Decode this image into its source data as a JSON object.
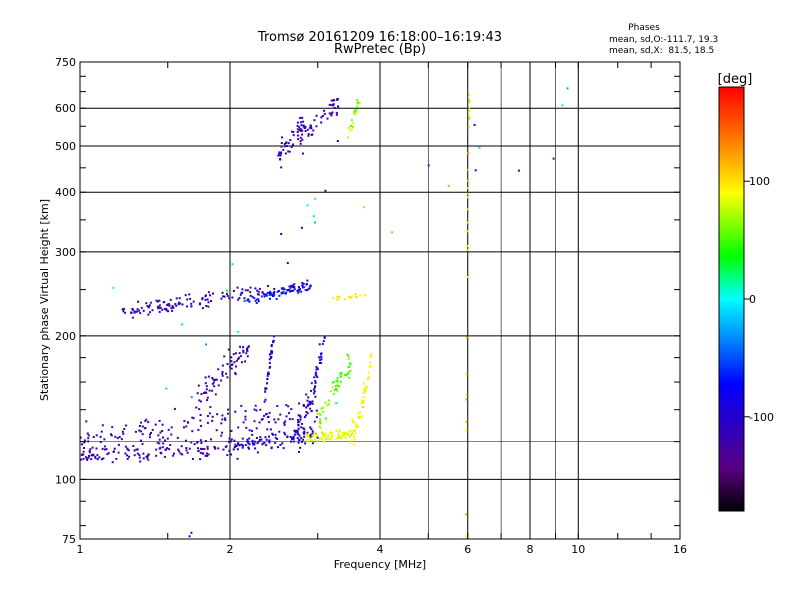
{
  "chart_data": {
    "type": "scatter",
    "title": "Tromsø 20161209 16:18:00–16:19:43",
    "subtitle": "RwPretec (Bp)",
    "xlabel": "Frequency [MHz]",
    "ylabel": "Stationary phase Virtual Height [km]",
    "x_scale": "log",
    "y_scale": "log",
    "xlim": [
      1,
      16
    ],
    "ylim": [
      75,
      750
    ],
    "x_ticks": [
      1,
      2,
      4,
      6,
      8,
      10,
      16
    ],
    "x_gridlines": [
      2,
      4,
      6,
      8,
      10
    ],
    "x_minor_gridlines": [
      5,
      7,
      9
    ],
    "y_ticks": [
      75,
      100,
      200,
      300,
      400,
      500,
      600,
      750
    ],
    "y_gridlines": [
      100,
      200,
      300,
      400,
      500,
      600
    ],
    "y_minor_gridlines": [
      120
    ],
    "grid": true,
    "phases": {
      "title": "Phases",
      "line1": "mean, sd,O:-111.7, 19.3",
      "line2": "mean, sd,X:  81.5, 18.5"
    },
    "colorbar": {
      "label": "[deg]",
      "min": -180,
      "max": 180,
      "ticks": [
        100,
        0,
        -100
      ],
      "tick_labels": [
        "100",
        "0",
        "-100"
      ],
      "colormap": "rainbow"
    },
    "series": [
      {
        "trace": "low-e-1",
        "x_range": [
          1.0,
          2.0
        ],
        "h_start": 112,
        "h_end": 117,
        "h_spread": 5,
        "phase": -120,
        "phase_spread": 12,
        "n": 130
      },
      {
        "trace": "low-e-2",
        "x_range": [
          2.0,
          3.0
        ],
        "h_start": 117,
        "h_end": 125,
        "h_spread": 5,
        "phase": -100,
        "phase_spread": 12,
        "n": 110
      },
      {
        "trace": "e-cusp",
        "x_range": [
          2.7,
          3.1
        ],
        "h_start": 128,
        "h_end": 200,
        "h_spread": 12,
        "phase": -100,
        "phase_spread": 15,
        "n": 70
      },
      {
        "trace": "scatter-1",
        "x_range": [
          1.0,
          3.0
        ],
        "h_start": 120,
        "h_end": 140,
        "h_spread": 10,
        "phase": -115,
        "phase_spread": 15,
        "n": 150
      },
      {
        "trace": "cluster-1",
        "x_range": [
          1.7,
          2.2
        ],
        "h_start": 145,
        "h_end": 190,
        "h_spread": 10,
        "phase": -115,
        "phase_spread": 12,
        "n": 70
      },
      {
        "trace": "column-1",
        "x_range": [
          2.35,
          2.45
        ],
        "h_start": 150,
        "h_end": 195,
        "h_spread": 6,
        "phase": -110,
        "phase_spread": 10,
        "n": 35
      },
      {
        "trace": "f-x-1",
        "x_range": [
          2.85,
          3.5
        ],
        "h_start": 122,
        "h_end": 125,
        "h_spread": 3,
        "phase": 85,
        "phase_spread": 12,
        "n": 70
      },
      {
        "trace": "f-x-2",
        "x_range": [
          3.5,
          3.85
        ],
        "h_start": 125,
        "h_end": 185,
        "h_spread": 8,
        "phase": 90,
        "phase_spread": 12,
        "n": 55
      },
      {
        "trace": "f-x-3",
        "x_range": [
          3.0,
          3.5
        ],
        "h_start": 130,
        "h_end": 175,
        "h_spread": 12,
        "phase": 60,
        "phase_spread": 25,
        "n": 60
      },
      {
        "trace": "f-mid",
        "x_range": [
          1.2,
          2.9
        ],
        "h_start": 225,
        "h_end": 255,
        "h_spread": 8,
        "phase": -110,
        "phase_spread": 20,
        "n": 150
      },
      {
        "trace": "f-mid-o",
        "x_range": [
          2.1,
          2.95
        ],
        "h_start": 235,
        "h_end": 255,
        "h_spread": 5,
        "phase": -70,
        "phase_spread": 15,
        "n": 60
      },
      {
        "trace": "f-mid-x",
        "x_range": [
          3.2,
          3.8
        ],
        "h_start": 240,
        "h_end": 245,
        "h_spread": 3,
        "phase": 95,
        "phase_spread": 15,
        "n": 18
      },
      {
        "trace": "f-high-o",
        "x_range": [
          2.5,
          3.3
        ],
        "h_start": 480,
        "h_end": 620,
        "h_spread": 35,
        "phase": -115,
        "phase_spread": 15,
        "n": 100
      },
      {
        "trace": "f-high-x",
        "x_range": [
          3.45,
          3.65
        ],
        "h_start": 520,
        "h_end": 640,
        "h_spread": 25,
        "phase": 60,
        "phase_spread": 20,
        "n": 20
      },
      {
        "trace": "noise",
        "x_range": [
          1.1,
          10.0
        ],
        "h_start": 90,
        "h_end": 600,
        "h_spread": 150,
        "phase": -20,
        "phase_spread": 90,
        "n": 30
      },
      {
        "trace": "column-6mhz",
        "x_range": [
          5.95,
          6.05
        ],
        "h_start": 80,
        "h_end": 640,
        "h_spread": 10,
        "phase": 95,
        "phase_spread": 25,
        "n": 30
      }
    ]
  }
}
